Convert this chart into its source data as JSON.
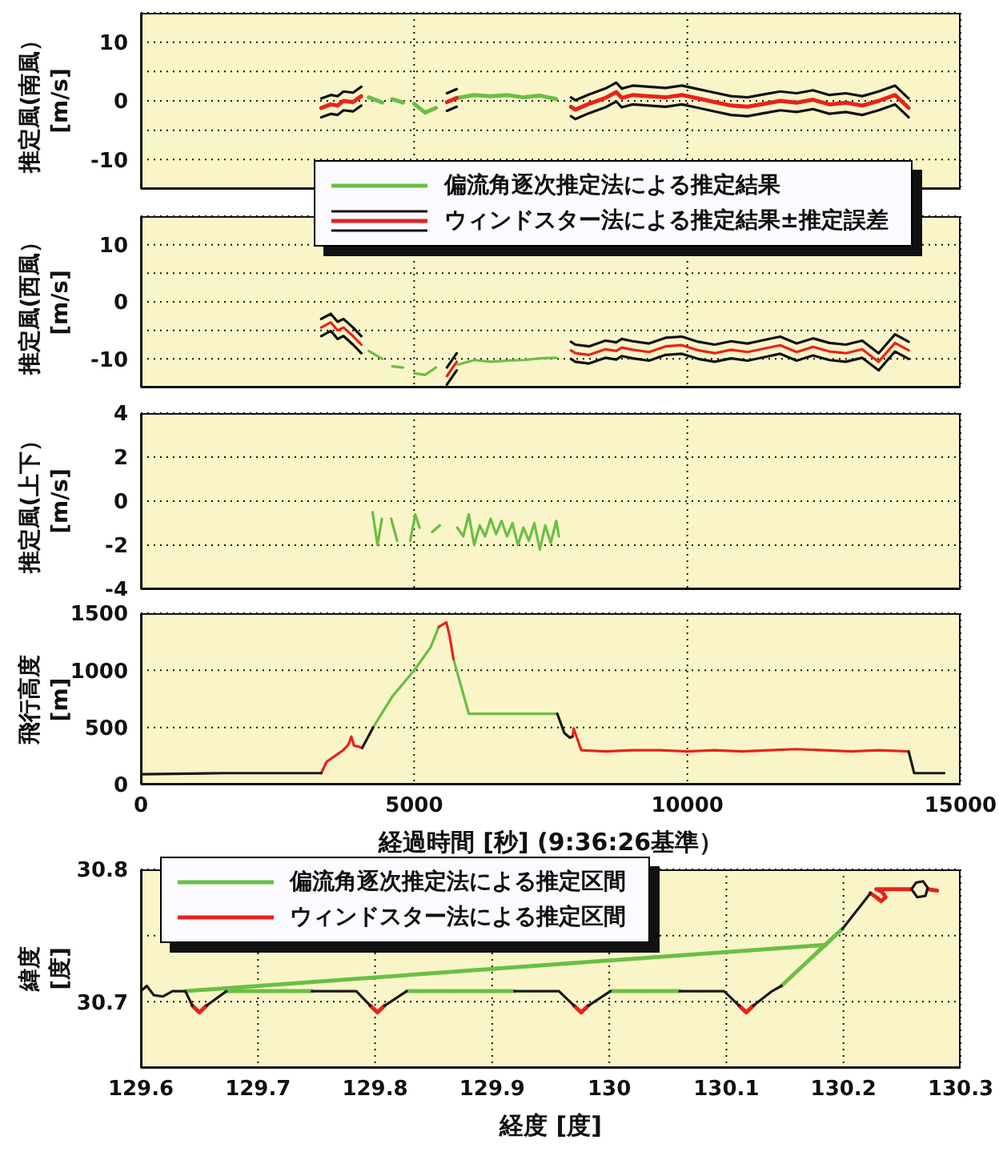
{
  "chart_data": [
    {
      "type": "line",
      "ylabel": "推定風(南風）\n[m/s]",
      "xlim": [
        0,
        15000
      ],
      "ylim": [
        -15,
        15
      ],
      "yticks": [
        -10,
        {
          "value": -5,
          "label": null
        },
        0,
        {
          "value": 5,
          "label": null
        },
        10
      ],
      "tick_labels": "y",
      "grid": true,
      "legend": "bottom right",
      "series": [
        {
          "name": "偏流角逐次推定法による推定結果",
          "color": "#6abf45",
          "x": [
            4170,
            4420,
            4500,
            4600,
            4800,
            4900,
            5000,
            5200,
            5400,
            5600,
            5800,
            6100,
            6400,
            6700,
            7000,
            7300,
            7600
          ],
          "values": [
            0.6,
            -0.3,
            null,
            0.3,
            -0.3,
            null,
            -0.5,
            -2,
            -1.2,
            null,
            0.5,
            1,
            0.8,
            1,
            0.6,
            0.9,
            0.3
          ]
        },
        {
          "color": "#111111",
          "x": [
            3300,
            3476,
            3600,
            3708,
            3882,
            4033,
            4300,
            5600,
            5780,
            6500,
            7870,
            7950,
            8200,
            8500,
            8700,
            8800,
            9000,
            9300,
            9600,
            9900,
            10200,
            10500,
            10800,
            11100,
            11400,
            11700,
            12000,
            12300,
            12600,
            12900,
            13200,
            13500,
            13800,
            14050
          ],
          "values": [
            0.4,
            1,
            0.8,
            1.6,
            1.4,
            2.4,
            null,
            1.3,
            2,
            null,
            0.6,
            0.1,
            1.1,
            2.1,
            3.1,
            2.1,
            2.6,
            2.4,
            2.2,
            2.6,
            2,
            1.4,
            0.8,
            0.6,
            1.1,
            1.6,
            1.3,
            1.8,
            1,
            1.3,
            0.8,
            1.6,
            2.6,
            0.4
          ]
        },
        {
          "color": "#111111",
          "x": [
            3300,
            3476,
            3600,
            3708,
            3882,
            4033,
            4300,
            5600,
            5780,
            6500,
            7870,
            7950,
            8200,
            8500,
            8700,
            8800,
            9000,
            9300,
            9600,
            9900,
            10200,
            10500,
            10800,
            11100,
            11400,
            11700,
            12000,
            12300,
            12600,
            12900,
            13200,
            13500,
            13800,
            14050
          ],
          "values": [
            -2.8,
            -2.2,
            -2.4,
            -1.6,
            -1.8,
            -0.8,
            null,
            -1.7,
            -1,
            null,
            -2.6,
            -3.1,
            -2.1,
            -1.1,
            -0.1,
            -1.1,
            -0.6,
            -0.8,
            -1,
            -0.6,
            -1.2,
            -1.8,
            -2.4,
            -2.6,
            -2.1,
            -1.6,
            -1.9,
            -1.4,
            -2.2,
            -1.9,
            -2.4,
            -1.6,
            -0.6,
            -2.8
          ]
        },
        {
          "name": "ウィンドスター法による推定結果±推定誤差",
          "color": "#e8231c",
          "x": [
            3300,
            3476,
            3600,
            3708,
            3882,
            4033,
            4300,
            5600,
            5780,
            6500,
            7870,
            7950,
            8200,
            8500,
            8700,
            8800,
            9000,
            9300,
            9600,
            9900,
            10200,
            10500,
            10800,
            11100,
            11400,
            11700,
            12000,
            12300,
            12600,
            12900,
            13200,
            13500,
            13800,
            14050
          ],
          "values": [
            -1.2,
            -0.6,
            -0.8,
            0,
            -0.2,
            0.8,
            null,
            -0.2,
            0.5,
            null,
            -1,
            -1.5,
            -0.5,
            0.5,
            1.5,
            0.5,
            1,
            0.8,
            0.6,
            1,
            0.4,
            -0.2,
            -0.8,
            -1,
            -0.5,
            0,
            -0.3,
            0.2,
            -0.6,
            -0.3,
            -0.8,
            0,
            1,
            -1.2
          ]
        }
      ]
    },
    {
      "type": "line",
      "ylabel": "推定風(西風）\n[m/s]",
      "xlim": [
        0,
        15000
      ],
      "ylim": [
        -15,
        15
      ],
      "yticks": [
        -10,
        {
          "value": -5,
          "label": null
        },
        0,
        {
          "value": 5,
          "label": null
        },
        10
      ],
      "tick_labels": "y",
      "grid": true,
      "series": [
        {
          "color": "#6abf45",
          "x": [
            4170,
            4420,
            4500,
            4600,
            4800,
            4900,
            5000,
            5200,
            5400,
            5600,
            5800,
            6100,
            6400,
            6700,
            7000,
            7300,
            7600
          ],
          "values": [
            -8.6,
            -10,
            null,
            -11.3,
            -11.5,
            null,
            -12.5,
            -12.8,
            -11.5,
            null,
            -11,
            -10.2,
            -10.5,
            -10.3,
            -10.2,
            -9.9,
            -9.8
          ]
        },
        {
          "color": "#111111",
          "x": [
            3300,
            3476,
            3600,
            3708,
            3882,
            4033,
            4300,
            5600,
            5780,
            6500,
            7870,
            7950,
            8200,
            8500,
            8700,
            8800,
            9000,
            9300,
            9600,
            9900,
            10200,
            10500,
            10800,
            11100,
            11400,
            11700,
            12000,
            12300,
            12600,
            12900,
            13200,
            13500,
            13800,
            14050
          ],
          "values": [
            -3,
            -2.1,
            -3.5,
            -3,
            -4.5,
            -6,
            null,
            -11.5,
            -9,
            null,
            -7,
            -7.5,
            -7.8,
            -6.8,
            -7.1,
            -6.5,
            -6.9,
            -7.3,
            -6.3,
            -6.1,
            -7,
            -7.5,
            -6.9,
            -7.3,
            -6.7,
            -6.1,
            -7.3,
            -6.4,
            -7.2,
            -7.5,
            -6.8,
            -9,
            -5.7,
            -7
          ]
        },
        {
          "color": "#111111",
          "x": [
            3300,
            3476,
            3600,
            3708,
            3882,
            4033,
            4300,
            5600,
            5780,
            6500,
            7870,
            7950,
            8200,
            8500,
            8700,
            8800,
            9000,
            9300,
            9600,
            9900,
            10200,
            10500,
            10800,
            11100,
            11400,
            11700,
            12000,
            12300,
            12600,
            12900,
            13200,
            13500,
            13800,
            14050
          ],
          "values": [
            -6,
            -5.1,
            -6.5,
            -6,
            -7.5,
            -9,
            null,
            -14.5,
            -12,
            null,
            -10,
            -10.5,
            -10.8,
            -9.8,
            -10.1,
            -9.5,
            -9.9,
            -10.3,
            -9.3,
            -9.1,
            -10,
            -10.5,
            -9.9,
            -10.3,
            -9.7,
            -9.1,
            -10.3,
            -9.4,
            -10.2,
            -10.5,
            -9.8,
            -12,
            -8.7,
            -10
          ]
        },
        {
          "color": "#e8231c",
          "x": [
            3300,
            3476,
            3600,
            3708,
            3882,
            4033,
            4300,
            5600,
            5780,
            6500,
            7870,
            7950,
            8200,
            8500,
            8700,
            8800,
            9000,
            9300,
            9600,
            9900,
            10200,
            10500,
            10800,
            11100,
            11400,
            11700,
            12000,
            12300,
            12600,
            12900,
            13200,
            13500,
            13800,
            14050
          ],
          "values": [
            -4.5,
            -3.6,
            -5,
            -4.5,
            -6,
            -7.5,
            null,
            -13,
            -10.5,
            null,
            -8.5,
            -9,
            -9.3,
            -8.3,
            -8.6,
            -8,
            -8.4,
            -8.8,
            -7.8,
            -7.6,
            -8.5,
            -9,
            -8.4,
            -8.8,
            -8.2,
            -7.6,
            -8.8,
            -7.9,
            -8.7,
            -9,
            -8.3,
            -10.5,
            -7.2,
            -8.5
          ]
        }
      ]
    },
    {
      "type": "line",
      "ylabel": "推定風(上下）\n[m/s]",
      "xlim": [
        0,
        15000
      ],
      "ylim": [
        -4,
        4
      ],
      "yticks": [
        -4,
        -2,
        0,
        2,
        4
      ],
      "tick_labels": "y",
      "grid": true,
      "series": [
        {
          "color": "#6abf45",
          "x": [
            4240,
            4330,
            4410,
            4500,
            4580,
            4690,
            4800,
            4930,
            5020,
            5100,
            5200,
            5330,
            5470,
            5600,
            5790,
            5900,
            6000,
            6100,
            6200,
            6300,
            6400,
            6500,
            6600,
            6700,
            6800,
            6900,
            7000,
            7100,
            7200,
            7300,
            7400,
            7500,
            7600,
            7650
          ],
          "values": [
            -0.5,
            -2,
            -0.8,
            null,
            -0.8,
            -1.8,
            null,
            -1.8,
            -0.6,
            -1.2,
            null,
            -1.4,
            -1.1,
            null,
            -1.2,
            -1.6,
            -0.6,
            -2,
            -1.1,
            -1.6,
            -0.8,
            -1.5,
            -0.9,
            -1.6,
            -1,
            -2,
            -1.2,
            -1.8,
            -1,
            -2.2,
            -1.1,
            -1.9,
            -0.9,
            -1.6
          ]
        }
      ]
    },
    {
      "type": "line",
      "xlabel": "経過時間 [秒] (9:36:26基準）",
      "ylabel": "飛行高度\n[m]",
      "xlim": [
        0,
        15000
      ],
      "xticks": [
        0,
        5000,
        10000,
        15000
      ],
      "ylim": [
        0,
        1500
      ],
      "yticks": [
        0,
        500,
        1000,
        1500
      ],
      "grid": true,
      "series": [
        {
          "color": "#6abf45",
          "x": [
            4250,
            4600,
            5000,
            5300,
            5450,
            5600,
            5720,
            6000,
            7620
          ],
          "values": [
            500,
            770,
            1000,
            1200,
            1380,
            null,
            1100,
            620,
            620
          ]
        },
        {
          "color": "#e8231c",
          "x": [
            3300,
            3400,
            3550,
            3700,
            3800,
            3850,
            3900,
            4000,
            4050,
            4500,
            5450,
            5590,
            5650,
            5720,
            6500,
            7900,
            7920,
            8000,
            8060,
            8500,
            9000,
            9500,
            10000,
            10500,
            11000,
            11500,
            12000,
            12500,
            13000,
            13500,
            14050
          ],
          "values": [
            100,
            200,
            250,
            300,
            350,
            420,
            340,
            330,
            320,
            null,
            1380,
            1420,
            1300,
            1100,
            null,
            420,
            490,
            380,
            300,
            290,
            300,
            300,
            290,
            300,
            290,
            300,
            310,
            300,
            290,
            300,
            290
          ]
        },
        {
          "color": "#1a1a1a",
          "x": [
            0,
            1500,
            3300,
            3700,
            4050,
            4250,
            5000,
            7620,
            7750,
            7850,
            7900,
            10000,
            14050,
            14150,
            14700
          ],
          "values": [
            90,
            100,
            100,
            null,
            320,
            500,
            null,
            620,
            450,
            410,
            420,
            null,
            290,
            100,
            100
          ]
        }
      ]
    },
    {
      "type": "line",
      "xlabel": "経度 [度]",
      "ylabel": "緯度\n[度]",
      "xlim": [
        129.6,
        130.3
      ],
      "xticks": [
        129.6,
        129.7,
        129.8,
        129.9,
        130,
        130.1,
        130.2,
        130.3
      ],
      "ylim": [
        30.65,
        30.8
      ],
      "yticks": [
        30.7,
        {
          "value": 30.75,
          "label": null
        },
        30.8
      ],
      "grid": true,
      "legend": "top left",
      "series": [
        {
          "name": "偏流角逐次推定法による推定区間",
          "color": "#6abf45",
          "x": [
            129.638,
            130.185,
            129.93,
            129.673,
            129.746,
            129.786,
            129.827,
            129.919,
            129.96,
            130.001,
            130.06,
            130.1,
            130.147,
            130.199
          ],
          "values": [
            30.708,
            30.743,
            null,
            30.708,
            30.708,
            null,
            30.708,
            30.708,
            null,
            30.708,
            30.708,
            null,
            30.712,
            30.755
          ]
        },
        {
          "name": "ウィンドスター法による推定区間",
          "color": "#e8231c",
          "x": [
            129.644,
            129.65,
            129.656,
            129.7,
            129.796,
            129.802,
            129.808,
            129.9,
            129.97,
            129.976,
            129.982,
            130.05,
            130.111,
            130.117,
            130.123,
            130.17,
            130.223,
            130.228,
            130.232,
            130.236,
            130.233,
            130.228,
            130.24,
            130.258,
            130.265,
            130.272,
            130.28
          ],
          "values": [
            30.697,
            30.692,
            30.697,
            null,
            30.697,
            30.692,
            30.697,
            null,
            30.697,
            30.692,
            30.697,
            null,
            30.697,
            30.692,
            30.697,
            null,
            30.782,
            30.779,
            30.776,
            30.779,
            30.783,
            30.785,
            30.785,
            30.785,
            null,
            30.785,
            30.784
          ]
        },
        {
          "color": "#1a1a1a",
          "x": [
            129.6,
            129.605,
            129.611,
            129.619,
            129.627,
            129.638,
            129.644,
            129.65,
            129.656,
            129.673,
            129.7,
            129.746,
            129.784,
            129.796,
            129.8,
            129.808,
            129.827,
            129.85,
            129.919,
            129.957,
            129.97,
            129.976,
            129.982,
            130.001,
            130.03,
            130.06,
            130.098,
            130.111,
            130.117,
            130.123,
            130.139,
            130.147,
            130.17,
            130.199,
            130.223,
            130.24,
            130.258,
            130.262,
            130.268,
            130.272,
            130.27,
            130.263,
            130.259
          ],
          "values": [
            30.708,
            30.712,
            30.705,
            30.704,
            30.708,
            30.708,
            30.697,
            null,
            30.697,
            30.708,
            null,
            30.708,
            30.708,
            30.697,
            null,
            30.697,
            30.708,
            null,
            30.708,
            30.708,
            30.697,
            null,
            30.697,
            30.708,
            null,
            30.708,
            30.708,
            30.697,
            null,
            30.697,
            30.708,
            30.712,
            null,
            30.755,
            30.782,
            null,
            30.785,
            30.79,
            30.791,
            30.786,
            30.78,
            30.779,
            30.784
          ]
        }
      ]
    }
  ]
}
